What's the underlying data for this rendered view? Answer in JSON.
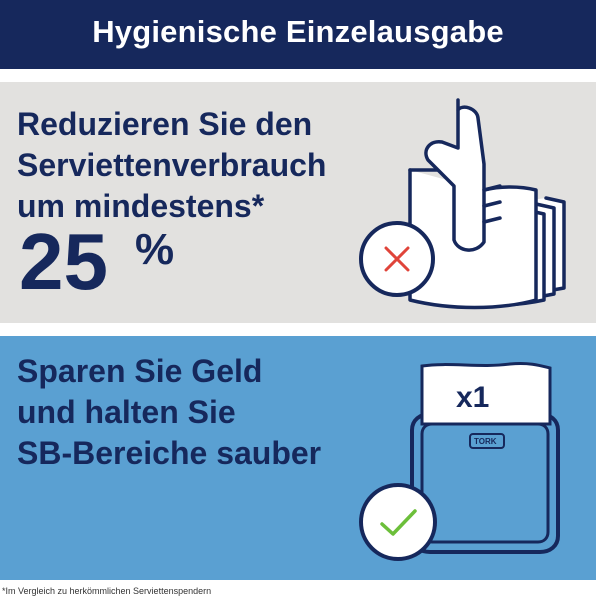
{
  "header": {
    "title": "Hygienische Einzelausgabe"
  },
  "top_panel": {
    "lines": [
      "Reduzieren Sie den",
      "Serviettenverbrauch",
      "um mindestens*"
    ],
    "number": "25",
    "unit": "%",
    "status_icon": "cross-icon"
  },
  "bottom_panel": {
    "lines": [
      "Sparen Sie Geld",
      "und halten Sie",
      "SB-Bereiche sauber"
    ],
    "count_label": "x1",
    "brand_label": "TORK",
    "status_icon": "check-icon"
  },
  "footnote": "*Im Vergleich zu herkömmlichen Serviettenspendern",
  "colors": {
    "navy": "#16285c",
    "light_gray": "#e2e1df",
    "blue": "#5aa0d2",
    "cross_red": "#e0443a",
    "check_green": "#6cbf3a"
  }
}
